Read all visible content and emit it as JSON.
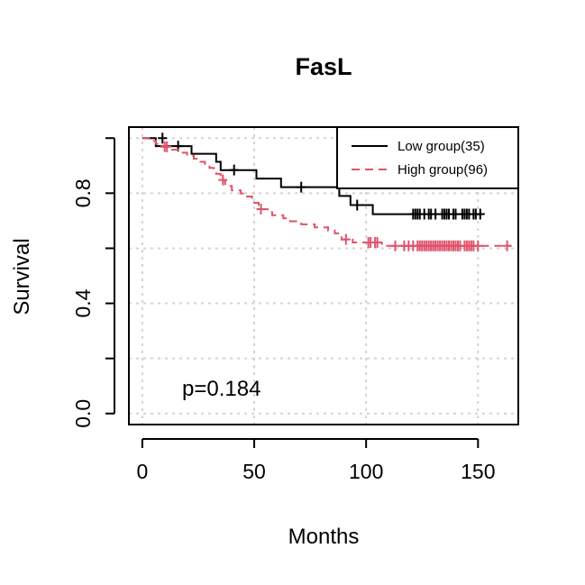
{
  "chart_data": {
    "type": "line",
    "title": "FasL",
    "xlabel": "Months",
    "ylabel": "Survival",
    "xlim": [
      -6,
      168
    ],
    "ylim": [
      -0.04,
      1.04
    ],
    "x_ticks": [
      0,
      50,
      100,
      150
    ],
    "y_ticks": [
      0.0,
      0.2,
      0.4,
      0.6,
      0.8,
      1.0
    ],
    "y_tick_labels": [
      {
        "value": 0.0,
        "label": "0.0"
      },
      {
        "value": 0.4,
        "label": "0.4"
      },
      {
        "value": 0.8,
        "label": "0.8"
      }
    ],
    "grid": true,
    "legend_position": "top-right",
    "annotation": "p=0.184",
    "series": [
      {
        "name": "Low group(35)",
        "color": "#000000",
        "line_style": "solid",
        "steps": [
          [
            0,
            1.0
          ],
          [
            6,
            1.0
          ],
          [
            6,
            0.971
          ],
          [
            12,
            0.971
          ],
          [
            12,
            0.971
          ],
          [
            22,
            0.971
          ],
          [
            22,
            0.943
          ],
          [
            33,
            0.943
          ],
          [
            33,
            0.914
          ],
          [
            35,
            0.914
          ],
          [
            35,
            0.884
          ],
          [
            51,
            0.884
          ],
          [
            51,
            0.853
          ],
          [
            62,
            0.853
          ],
          [
            62,
            0.822
          ],
          [
            88,
            0.822
          ],
          [
            88,
            0.79
          ],
          [
            93,
            0.79
          ],
          [
            93,
            0.757
          ],
          [
            103,
            0.757
          ],
          [
            103,
            0.724
          ],
          [
            152,
            0.724
          ]
        ],
        "censor_times": [
          9,
          16,
          41,
          71,
          96,
          121,
          122,
          123,
          124,
          126,
          128,
          129,
          131,
          134,
          135,
          136,
          137,
          139,
          140,
          143,
          144,
          145,
          146,
          148,
          149,
          151
        ],
        "censor_values": [
          1.0,
          0.971,
          0.884,
          0.822,
          0.757,
          0.724,
          0.724,
          0.724,
          0.724,
          0.724,
          0.724,
          0.724,
          0.724,
          0.724,
          0.724,
          0.724,
          0.724,
          0.724,
          0.724,
          0.724,
          0.724,
          0.724,
          0.724,
          0.724,
          0.724,
          0.724
        ]
      },
      {
        "name": "High group(96)",
        "color": "#DF536B",
        "line_style": "dashed",
        "steps": [
          [
            0,
            1.0
          ],
          [
            3,
            1.0
          ],
          [
            3,
            0.99
          ],
          [
            6,
            0.99
          ],
          [
            6,
            0.979
          ],
          [
            9,
            0.979
          ],
          [
            9,
            0.969
          ],
          [
            12,
            0.969
          ],
          [
            12,
            0.958
          ],
          [
            16,
            0.958
          ],
          [
            16,
            0.947
          ],
          [
            20,
            0.947
          ],
          [
            20,
            0.936
          ],
          [
            23,
            0.936
          ],
          [
            23,
            0.925
          ],
          [
            26,
            0.925
          ],
          [
            26,
            0.914
          ],
          [
            28,
            0.914
          ],
          [
            28,
            0.903
          ],
          [
            30,
            0.903
          ],
          [
            30,
            0.892
          ],
          [
            32,
            0.892
          ],
          [
            32,
            0.881
          ],
          [
            33,
            0.881
          ],
          [
            33,
            0.87
          ],
          [
            35,
            0.87
          ],
          [
            35,
            0.848
          ],
          [
            37,
            0.848
          ],
          [
            37,
            0.826
          ],
          [
            40,
            0.826
          ],
          [
            40,
            0.81
          ],
          [
            44,
            0.81
          ],
          [
            44,
            0.799
          ],
          [
            46,
            0.799
          ],
          [
            46,
            0.788
          ],
          [
            49,
            0.788
          ],
          [
            49,
            0.765
          ],
          [
            52,
            0.765
          ],
          [
            52,
            0.742
          ],
          [
            56,
            0.742
          ],
          [
            56,
            0.731
          ],
          [
            58,
            0.731
          ],
          [
            58,
            0.72
          ],
          [
            63,
            0.72
          ],
          [
            63,
            0.709
          ],
          [
            66,
            0.709
          ],
          [
            66,
            0.698
          ],
          [
            71,
            0.698
          ],
          [
            71,
            0.687
          ],
          [
            77,
            0.687
          ],
          [
            77,
            0.676
          ],
          [
            83,
            0.676
          ],
          [
            83,
            0.665
          ],
          [
            86,
            0.665
          ],
          [
            86,
            0.654
          ],
          [
            89,
            0.654
          ],
          [
            89,
            0.632
          ],
          [
            94,
            0.632
          ],
          [
            94,
            0.621
          ],
          [
            107,
            0.621
          ],
          [
            107,
            0.609
          ],
          [
            165,
            0.609
          ]
        ],
        "censor_times": [
          10,
          11,
          36,
          53,
          91,
          101,
          102,
          104,
          105,
          113,
          117,
          119,
          121,
          123,
          124,
          125,
          126,
          127,
          128,
          129,
          130,
          131,
          132,
          133,
          134,
          135,
          136,
          137,
          138,
          139,
          140,
          141,
          142,
          144,
          145,
          146,
          147,
          148,
          150,
          163
        ],
        "censor_values": [
          0.969,
          0.969,
          0.848,
          0.742,
          0.632,
          0.621,
          0.621,
          0.621,
          0.621,
          0.609,
          0.609,
          0.609,
          0.609,
          0.609,
          0.609,
          0.609,
          0.609,
          0.609,
          0.609,
          0.609,
          0.609,
          0.609,
          0.609,
          0.609,
          0.609,
          0.609,
          0.609,
          0.609,
          0.609,
          0.609,
          0.609,
          0.609,
          0.609,
          0.609,
          0.609,
          0.609,
          0.609,
          0.609,
          0.609,
          0.609
        ]
      }
    ]
  }
}
